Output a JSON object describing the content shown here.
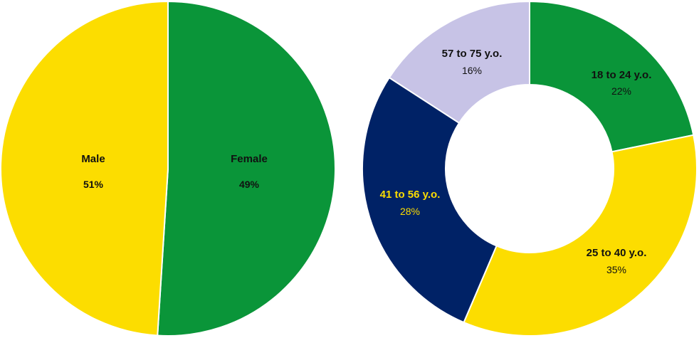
{
  "chart_data": [
    {
      "type": "pie",
      "slices": [
        {
          "label": "Male",
          "value": 51,
          "value_label": "51%",
          "color": "#0A9539",
          "text_color": "#111111"
        },
        {
          "label": "Female",
          "value": 49,
          "value_label": "49%",
          "color": "#FCDD00",
          "text_color": "#111111"
        }
      ]
    },
    {
      "type": "pie",
      "donut": true,
      "slices": [
        {
          "label": "18 to 24 y.o.",
          "value": 22,
          "value_label": "22%",
          "color": "#0A9539",
          "text_color": "#111111"
        },
        {
          "label": "25 to 40 y.o.",
          "value": 35,
          "value_label": "35%",
          "color": "#FCDD00",
          "text_color": "#111111"
        },
        {
          "label": "41 to 56 y.o.",
          "value": 28,
          "value_label": "28%",
          "color": "#002266",
          "text_color": "#FCDD00"
        },
        {
          "label": "57 to 75 y.o.",
          "value": 16,
          "value_label": "16%",
          "color": "#C7C3E6",
          "text_color": "#111111"
        }
      ]
    }
  ]
}
